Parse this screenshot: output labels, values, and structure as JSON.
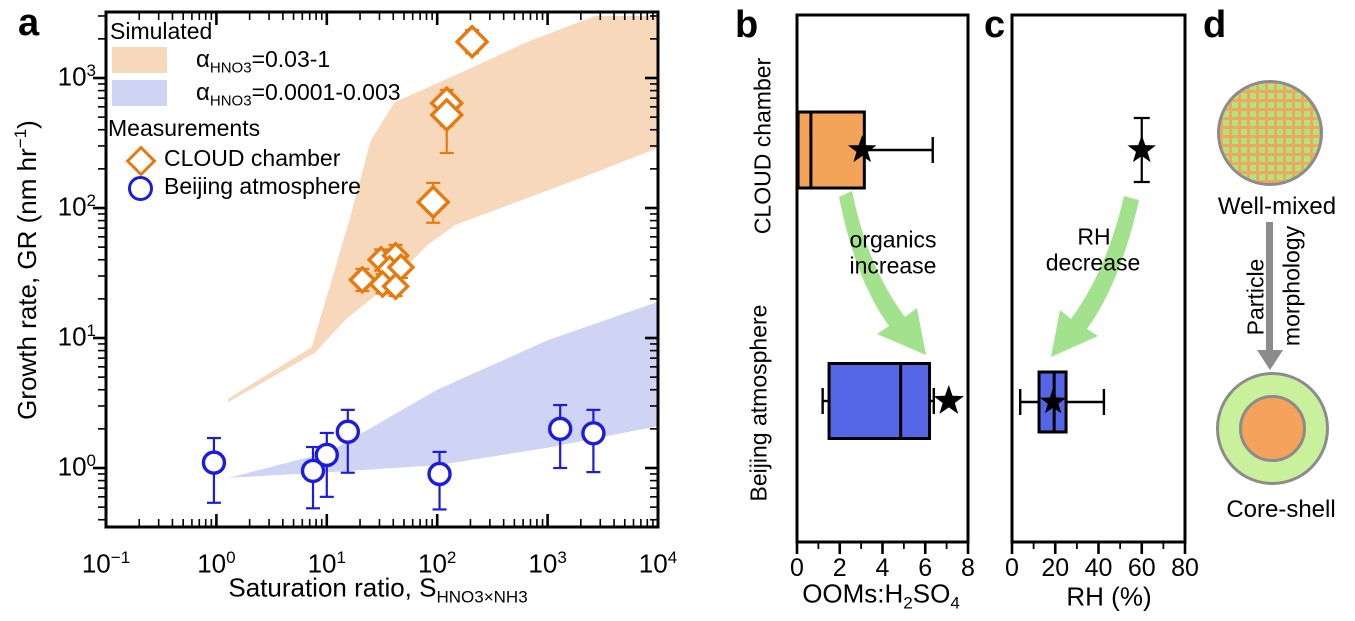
{
  "chart_data": {
    "type": "composite",
    "panel_a": {
      "label": "a",
      "type": "scatter",
      "x_axis": {
        "title": "Saturation ratio, S",
        "title_sub": "HNO3×NH3",
        "scale": "log",
        "range": [
          0.1,
          10000
        ],
        "tick_exponents": [
          -1,
          0,
          1,
          2,
          3,
          4
        ]
      },
      "y_axis": {
        "title_pre": "Growth rate, GR (nm hr",
        "title_sup": "−1",
        "title_post": ")",
        "scale": "log",
        "range": [
          0.35,
          3200
        ],
        "tick_exponents": [
          0,
          1,
          2,
          3
        ]
      },
      "legend": {
        "sim_title": "Simulated",
        "items": [
          {
            "swatch": "#F8D8BA",
            "alpha": "α",
            "sub": "HNO3",
            "value": "=0.03-1"
          },
          {
            "swatch": "#CFD3F4",
            "alpha": "α",
            "sub": "HNO3",
            "value": "=0.0001-0.003"
          }
        ],
        "meas_title": "Measurements",
        "meas_items": [
          {
            "marker": "diamond",
            "color": "#E8790F",
            "label": "CLOUD chamber"
          },
          {
            "marker": "circle",
            "color": "#1C1CDE",
            "label": "Beijing atmosphere"
          }
        ]
      },
      "bands": [
        {
          "name": "alpha_HNO3_0.03-1",
          "color": "#F8D8BA",
          "points": [
            [
              1.27,
              3.4
            ],
            [
              7.3,
              8.5
            ],
            [
              16,
              80
            ],
            [
              25,
              330
            ],
            [
              41,
              650
            ],
            [
              165,
              1100
            ],
            [
              660,
              1900
            ],
            [
              2700,
              3000
            ],
            [
              10000,
              3000
            ],
            [
              10000,
              290
            ],
            [
              2000,
              170
            ],
            [
              145,
              74
            ],
            [
              82,
              52
            ],
            [
              37,
              26
            ],
            [
              15,
              14
            ],
            [
              7.8,
              7.7
            ],
            [
              1.27,
              3.2
            ]
          ]
        },
        {
          "name": "alpha_HNO3_0.0001-0.003",
          "color": "#CFD3F4",
          "points": [
            [
              1.3,
              0.84
            ],
            [
              10.5,
              1.33
            ],
            [
              100,
              4.0
            ],
            [
              1000,
              9.6
            ],
            [
              10000,
              19
            ],
            [
              10000,
              2.1
            ],
            [
              1000,
              1.43
            ],
            [
              100,
              1.05
            ],
            [
              10.5,
              0.93
            ]
          ]
        }
      ],
      "series": [
        {
          "name": "CLOUD chamber",
          "marker": "diamond",
          "color": "#E8790F",
          "points": [
            {
              "x": 207,
              "y": 1900,
              "lo": 1550,
              "hi": 2340,
              "size": 15
            },
            {
              "x": 122,
              "y": 640,
              "lo": 265,
              "hi": 810,
              "size": 15
            },
            {
              "x": 122,
              "y": 520,
              "lo": 430,
              "hi": 620,
              "size": 15
            },
            {
              "x": 92,
              "y": 111,
              "lo": 77,
              "hi": 156,
              "size": 15
            },
            {
              "x": 21,
              "y": 28,
              "lo": 23,
              "hi": 34,
              "size": 12
            },
            {
              "x": 31,
              "y": 40,
              "lo": 33,
              "hi": 48,
              "size": 12
            },
            {
              "x": 42,
              "y": 43,
              "lo": 36,
              "hi": 52,
              "size": 12
            },
            {
              "x": 37,
              "y": 34,
              "lo": 28,
              "hi": 41,
              "size": 12
            },
            {
              "x": 47,
              "y": 35,
              "lo": 29,
              "hi": 42,
              "size": 12
            },
            {
              "x": 32,
              "y": 26,
              "lo": 22,
              "hi": 31,
              "size": 12
            },
            {
              "x": 42,
              "y": 25,
              "lo": 21,
              "hi": 30,
              "size": 12
            }
          ]
        },
        {
          "name": "Beijing atmosphere",
          "marker": "circle",
          "color": "#1C1CDE",
          "points": [
            {
              "x": 0.95,
              "y": 1.1,
              "lo": 0.54,
              "hi": 1.7
            },
            {
              "x": 7.5,
              "y": 0.95,
              "lo": 0.49,
              "hi": 1.45
            },
            {
              "x": 10,
              "y": 1.26,
              "lo": 0.6,
              "hi": 1.86
            },
            {
              "x": 15.5,
              "y": 1.9,
              "lo": 0.92,
              "hi": 2.8
            },
            {
              "x": 105,
              "y": 0.9,
              "lo": 0.48,
              "hi": 1.33
            },
            {
              "x": 1300,
              "y": 2.0,
              "lo": 1.0,
              "hi": 3.05
            },
            {
              "x": 2600,
              "y": 1.85,
              "lo": 0.93,
              "hi": 2.8
            }
          ]
        }
      ]
    },
    "panel_b": {
      "label": "b",
      "type": "boxplot-horizontal",
      "x_axis": {
        "title_pre": "OOMs:H",
        "title_sub1": "2",
        "title_mid": "SO",
        "title_sub2": "4",
        "range": [
          0,
          8
        ],
        "major_ticks": [
          0,
          2,
          4,
          6,
          8
        ],
        "minor_ticks": [
          1,
          3,
          5,
          7
        ]
      },
      "rows": [
        {
          "label": "CLOUD chamber",
          "box": {
            "color": "#F4A459",
            "q1": 0.05,
            "median": 0.65,
            "q3": 3.15,
            "whisker_low": null,
            "whisker_high": 6.35
          },
          "star": 3.05
        },
        {
          "label": "Beijing atmosphere",
          "box": {
            "color": "#5465E6",
            "q1": 1.5,
            "median": 4.85,
            "q3": 6.2,
            "whisker_low": 1.2,
            "whisker_high": 6.4
          },
          "star": 7.1
        }
      ],
      "arrow": {
        "text_line1": "organics",
        "text_line2": "increase",
        "color": "#9BDF82",
        "direction": "down-right"
      }
    },
    "panel_c": {
      "label": "c",
      "type": "boxplot-horizontal",
      "x_axis": {
        "title": "RH (%)",
        "range": [
          0,
          80
        ],
        "major_ticks": [
          0,
          20,
          40,
          60,
          80
        ],
        "minor_ticks": [
          10,
          30,
          50,
          70
        ]
      },
      "rows": [
        {
          "label": "CLOUD chamber",
          "box": null,
          "star": 60,
          "star_error": "vertical"
        },
        {
          "label": "Beijing atmosphere",
          "box": {
            "color": "#5465E6",
            "q1": 12.5,
            "median": 19.5,
            "q3": 25,
            "whisker_low": 3.8,
            "whisker_high": 42.5
          },
          "star": 19
        }
      ],
      "arrow": {
        "text_line1": "RH",
        "text_line2": "decrease",
        "color": "#9BDF82",
        "direction": "down-left"
      }
    },
    "panel_d": {
      "label": "d",
      "well_mixed": {
        "caption": "Well-mixed",
        "base_color": "#F2A761",
        "dot_color": "#ACE67D",
        "border_color": "#8C8C8C"
      },
      "core_shell": {
        "caption": "Core-shell",
        "shell_color": "#C9F09A",
        "core_color": "#F4A25C",
        "border_color": "#8C8C8C"
      },
      "arrow_label_line1": "Particle",
      "arrow_label_line2": "morphology",
      "arrow_color": "#8C8C8C"
    }
  }
}
